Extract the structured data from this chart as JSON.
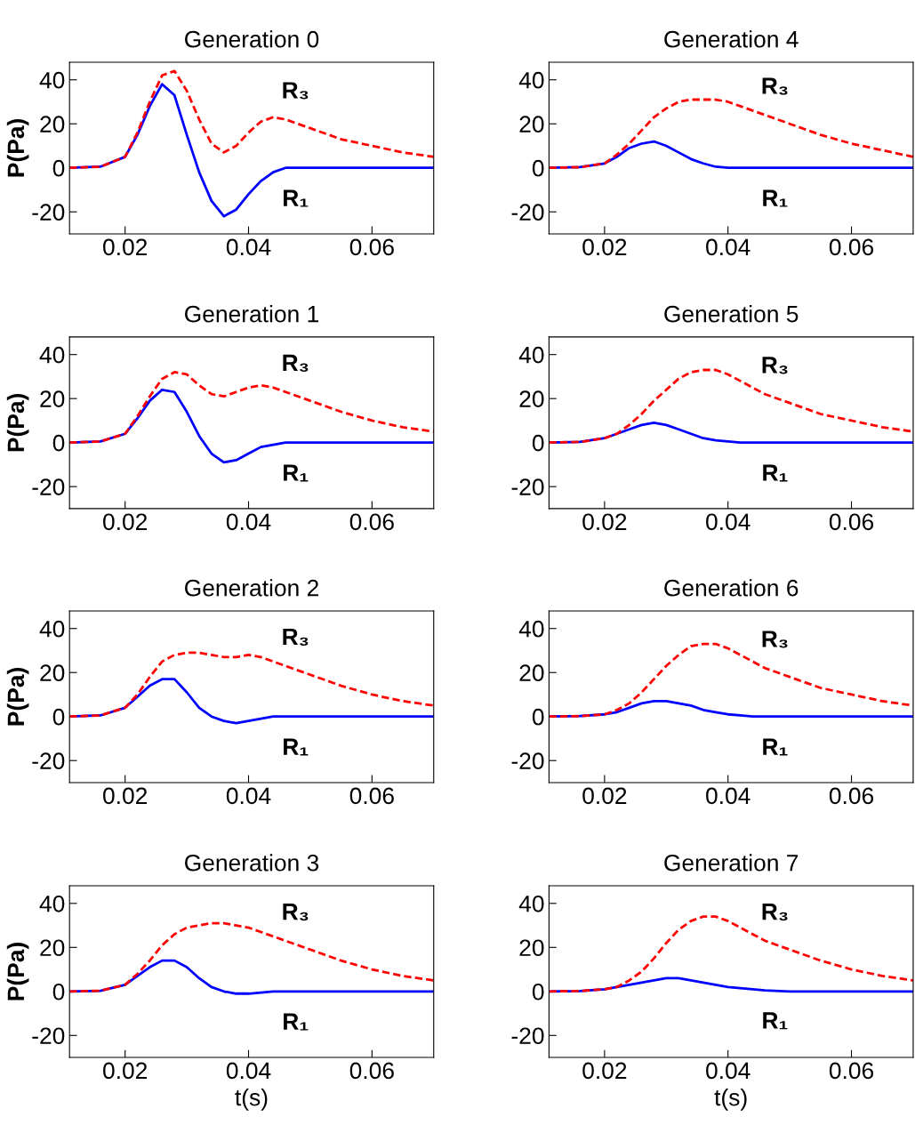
{
  "chart_data": [
    {
      "type": "line",
      "title": "Generation 0",
      "ylabel": "P(Pa)",
      "xlim": [
        0.011,
        0.07
      ],
      "ylim": [
        -30,
        48
      ],
      "xticks": [
        0.02,
        0.04,
        0.06
      ],
      "yticks": [
        -20,
        0,
        20,
        40
      ],
      "grid": false,
      "legend": false,
      "x": [
        0.011,
        0.016,
        0.02,
        0.022,
        0.024,
        0.026,
        0.028,
        0.03,
        0.032,
        0.034,
        0.036,
        0.038,
        0.04,
        0.042,
        0.044,
        0.046,
        0.05,
        0.055,
        0.06,
        0.065,
        0.07
      ],
      "series": [
        {
          "name": "R₁",
          "color": "#0000ff",
          "line_style": "solid",
          "values": [
            0,
            0.5,
            5,
            15,
            28,
            38,
            33,
            15,
            -2,
            -15,
            -22,
            -19,
            -12,
            -6,
            -2,
            0,
            0,
            0,
            0,
            0,
            0
          ]
        },
        {
          "name": "R₃",
          "color": "#ff0000",
          "line_style": "dashed",
          "values": [
            0,
            0.5,
            5,
            16,
            30,
            42,
            44,
            35,
            22,
            11,
            7,
            10,
            16,
            21,
            23,
            22,
            18,
            13,
            10,
            7,
            5
          ]
        }
      ]
    },
    {
      "type": "line",
      "title": "Generation 4",
      "xlim": [
        0.011,
        0.07
      ],
      "ylim": [
        -30,
        48
      ],
      "xticks": [
        0.02,
        0.04,
        0.06
      ],
      "yticks": [
        -20,
        0,
        20,
        40
      ],
      "grid": false,
      "legend": false,
      "x": [
        0.011,
        0.016,
        0.02,
        0.022,
        0.024,
        0.026,
        0.028,
        0.03,
        0.032,
        0.034,
        0.036,
        0.038,
        0.04,
        0.042,
        0.044,
        0.046,
        0.05,
        0.055,
        0.06,
        0.065,
        0.07
      ],
      "series": [
        {
          "name": "R₁",
          "color": "#0000ff",
          "line_style": "solid",
          "values": [
            0,
            0.3,
            2,
            5,
            9,
            11,
            12,
            10,
            7,
            4,
            2,
            0.5,
            0,
            0,
            0,
            0,
            0,
            0,
            0,
            0,
            0
          ]
        },
        {
          "name": "R₃",
          "color": "#ff0000",
          "line_style": "dashed",
          "values": [
            0,
            0.3,
            2,
            6,
            11,
            17,
            23,
            27,
            30,
            31,
            31,
            31,
            30,
            28,
            26,
            24,
            20,
            15,
            11,
            8,
            5
          ]
        }
      ]
    },
    {
      "type": "line",
      "title": "Generation 1",
      "ylabel": "P(Pa)",
      "xlim": [
        0.011,
        0.07
      ],
      "ylim": [
        -30,
        48
      ],
      "xticks": [
        0.02,
        0.04,
        0.06
      ],
      "yticks": [
        -20,
        0,
        20,
        40
      ],
      "grid": false,
      "legend": false,
      "x": [
        0.011,
        0.016,
        0.02,
        0.022,
        0.024,
        0.026,
        0.028,
        0.03,
        0.032,
        0.034,
        0.036,
        0.038,
        0.04,
        0.042,
        0.044,
        0.046,
        0.05,
        0.055,
        0.06,
        0.065,
        0.07
      ],
      "series": [
        {
          "name": "R₁",
          "color": "#0000ff",
          "line_style": "solid",
          "values": [
            0,
            0.5,
            4,
            11,
            19,
            24,
            23,
            14,
            3,
            -5,
            -9,
            -8,
            -5,
            -2,
            -1,
            0,
            0,
            0,
            0,
            0,
            0
          ]
        },
        {
          "name": "R₃",
          "color": "#ff0000",
          "line_style": "dashed",
          "values": [
            0,
            0.5,
            4,
            12,
            21,
            29,
            32,
            31,
            26,
            22,
            21,
            23,
            25,
            26,
            25,
            23,
            19,
            14,
            10,
            7,
            5
          ]
        }
      ]
    },
    {
      "type": "line",
      "title": "Generation 5",
      "xlim": [
        0.011,
        0.07
      ],
      "ylim": [
        -30,
        48
      ],
      "xticks": [
        0.02,
        0.04,
        0.06
      ],
      "yticks": [
        -20,
        0,
        20,
        40
      ],
      "grid": false,
      "legend": false,
      "x": [
        0.011,
        0.016,
        0.02,
        0.022,
        0.024,
        0.026,
        0.028,
        0.03,
        0.032,
        0.034,
        0.036,
        0.038,
        0.04,
        0.042,
        0.044,
        0.046,
        0.05,
        0.055,
        0.06,
        0.065,
        0.07
      ],
      "series": [
        {
          "name": "R₁",
          "color": "#0000ff",
          "line_style": "solid",
          "values": [
            0,
            0.3,
            2,
            4,
            6,
            8,
            9,
            8,
            6,
            4,
            2,
            1,
            0.5,
            0,
            0,
            0,
            0,
            0,
            0,
            0,
            0
          ]
        },
        {
          "name": "R₃",
          "color": "#ff0000",
          "line_style": "dashed",
          "values": [
            0,
            0.3,
            2,
            4,
            8,
            13,
            19,
            24,
            29,
            32,
            33,
            33,
            31,
            28,
            25,
            22,
            18,
            13,
            10,
            7,
            5
          ]
        }
      ]
    },
    {
      "type": "line",
      "title": "Generation 2",
      "ylabel": "P(Pa)",
      "xlim": [
        0.011,
        0.07
      ],
      "ylim": [
        -30,
        48
      ],
      "xticks": [
        0.02,
        0.04,
        0.06
      ],
      "yticks": [
        -20,
        0,
        20,
        40
      ],
      "grid": false,
      "legend": false,
      "x": [
        0.011,
        0.016,
        0.02,
        0.022,
        0.024,
        0.026,
        0.028,
        0.03,
        0.032,
        0.034,
        0.036,
        0.038,
        0.04,
        0.042,
        0.044,
        0.046,
        0.05,
        0.055,
        0.06,
        0.065,
        0.07
      ],
      "series": [
        {
          "name": "R₁",
          "color": "#0000ff",
          "line_style": "solid",
          "values": [
            0,
            0.5,
            4,
            9,
            14,
            17,
            17,
            11,
            4,
            0,
            -2,
            -3,
            -2,
            -1,
            0,
            0,
            0,
            0,
            0,
            0,
            0
          ]
        },
        {
          "name": "R₃",
          "color": "#ff0000",
          "line_style": "dashed",
          "values": [
            0,
            0.5,
            4,
            10,
            18,
            25,
            28,
            29,
            29,
            28,
            27,
            27,
            28,
            27,
            25,
            23,
            19,
            14,
            10,
            7,
            5
          ]
        }
      ]
    },
    {
      "type": "line",
      "title": "Generation 6",
      "xlim": [
        0.011,
        0.07
      ],
      "ylim": [
        -30,
        48
      ],
      "xticks": [
        0.02,
        0.04,
        0.06
      ],
      "yticks": [
        -20,
        0,
        20,
        40
      ],
      "grid": false,
      "legend": false,
      "x": [
        0.011,
        0.016,
        0.02,
        0.022,
        0.024,
        0.026,
        0.028,
        0.03,
        0.032,
        0.034,
        0.036,
        0.038,
        0.04,
        0.042,
        0.044,
        0.046,
        0.05,
        0.055,
        0.06,
        0.065,
        0.07
      ],
      "series": [
        {
          "name": "R₁",
          "color": "#0000ff",
          "line_style": "solid",
          "values": [
            0,
            0.2,
            1,
            2,
            4,
            6,
            7,
            7,
            6,
            5,
            3,
            2,
            1,
            0.5,
            0,
            0,
            0,
            0,
            0,
            0,
            0
          ]
        },
        {
          "name": "R₃",
          "color": "#ff0000",
          "line_style": "dashed",
          "values": [
            0,
            0.2,
            1,
            3,
            6,
            11,
            17,
            23,
            28,
            32,
            33,
            33,
            31,
            28,
            25,
            22,
            18,
            13,
            10,
            7,
            5
          ]
        }
      ]
    },
    {
      "type": "line",
      "title": "Generation 3",
      "ylabel": "P(Pa)",
      "xlabel": "t(s)",
      "xlim": [
        0.011,
        0.07
      ],
      "ylim": [
        -30,
        48
      ],
      "xticks": [
        0.02,
        0.04,
        0.06
      ],
      "yticks": [
        -20,
        0,
        20,
        40
      ],
      "grid": false,
      "legend": false,
      "x": [
        0.011,
        0.016,
        0.02,
        0.022,
        0.024,
        0.026,
        0.028,
        0.03,
        0.032,
        0.034,
        0.036,
        0.038,
        0.04,
        0.042,
        0.044,
        0.046,
        0.05,
        0.055,
        0.06,
        0.065,
        0.07
      ],
      "series": [
        {
          "name": "R₁",
          "color": "#0000ff",
          "line_style": "solid",
          "values": [
            0,
            0.3,
            3,
            7,
            11,
            14,
            14,
            11,
            6,
            2,
            0,
            -1,
            -1,
            -0.5,
            0,
            0,
            0,
            0,
            0,
            0,
            0
          ]
        },
        {
          "name": "R₃",
          "color": "#ff0000",
          "line_style": "dashed",
          "values": [
            0,
            0.3,
            3,
            8,
            14,
            21,
            26,
            29,
            30,
            31,
            31,
            30,
            29,
            27,
            25,
            23,
            19,
            14,
            10,
            7,
            5
          ]
        }
      ]
    },
    {
      "type": "line",
      "title": "Generation 7",
      "xlabel": "t(s)",
      "xlim": [
        0.011,
        0.07
      ],
      "ylim": [
        -30,
        48
      ],
      "xticks": [
        0.02,
        0.04,
        0.06
      ],
      "yticks": [
        -20,
        0,
        20,
        40
      ],
      "grid": false,
      "legend": false,
      "x": [
        0.011,
        0.016,
        0.02,
        0.022,
        0.024,
        0.026,
        0.028,
        0.03,
        0.032,
        0.034,
        0.036,
        0.038,
        0.04,
        0.042,
        0.044,
        0.046,
        0.05,
        0.055,
        0.06,
        0.065,
        0.07
      ],
      "series": [
        {
          "name": "R₁",
          "color": "#0000ff",
          "line_style": "solid",
          "values": [
            0,
            0.2,
            1,
            2,
            3,
            4,
            5,
            6,
            6,
            5,
            4,
            3,
            2,
            1.5,
            1,
            0.5,
            0,
            0,
            0,
            0,
            0
          ]
        },
        {
          "name": "R₃",
          "color": "#ff0000",
          "line_style": "dashed",
          "values": [
            0,
            0.2,
            1,
            2,
            5,
            9,
            15,
            22,
            28,
            32,
            34,
            34,
            32,
            29,
            26,
            23,
            19,
            14,
            10,
            7,
            5
          ]
        }
      ]
    }
  ]
}
